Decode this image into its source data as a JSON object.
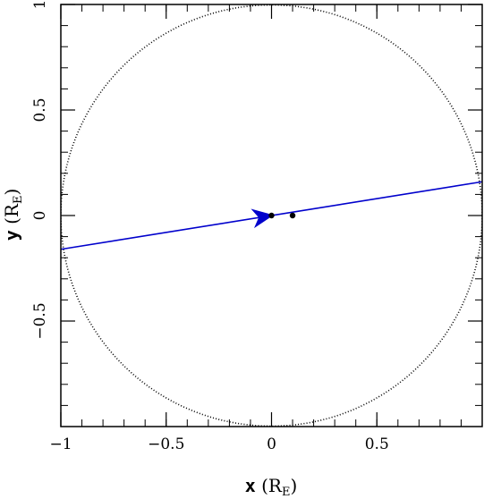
{
  "chart_data": {
    "type": "line",
    "title": "",
    "xlabel": {
      "var": "x",
      "unit_main": "R",
      "unit_sub": "E"
    },
    "ylabel": {
      "var": "y",
      "unit_main": "R",
      "unit_sub": "E"
    },
    "xlim": [
      -1.0,
      1.0
    ],
    "ylim": [
      -1.0,
      1.0
    ],
    "x_ticks": [
      -1,
      -0.5,
      0,
      0.5
    ],
    "x_tick_labels": [
      "−1",
      "−0.5",
      "0",
      "0.5"
    ],
    "y_ticks": [
      1,
      0.5,
      0,
      -0.5
    ],
    "y_tick_labels": [
      "1",
      "0.5",
      "0",
      "−0.5"
    ],
    "x_minor_step": 0.1,
    "y_minor_step": 0.1,
    "grid": false,
    "circle": {
      "radius": 1.0,
      "style": "dotted",
      "color": "#000000"
    },
    "trajectory": {
      "color": "#0000cc",
      "x": [
        -1.0,
        1.0
      ],
      "y": [
        -0.16,
        0.16
      ],
      "arrow_at": [
        -0.04,
        -0.006
      ]
    },
    "points": [
      {
        "x": 0.0,
        "y": 0.0
      },
      {
        "x": 0.1,
        "y": 0.0
      }
    ]
  }
}
